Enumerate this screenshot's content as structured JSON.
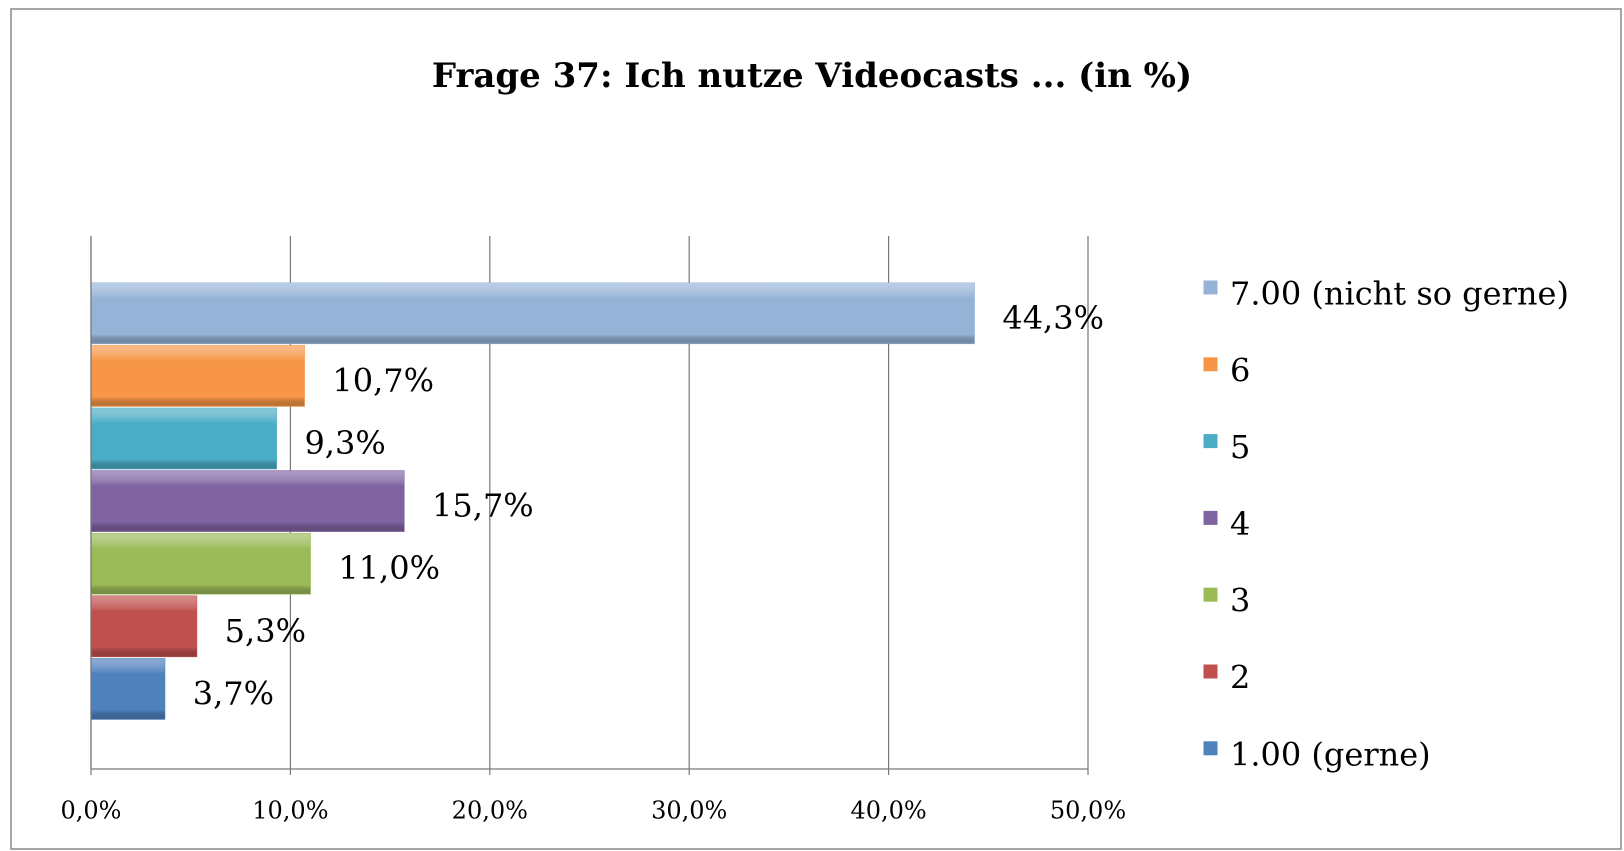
{
  "chart_data": {
    "type": "bar",
    "orientation": "horizontal",
    "title": "Frage 37: Ich nutze Videocasts ... (in %)",
    "series": [
      {
        "name": "1.00 (gerne)",
        "color": "#4f81bd",
        "values": [
          3.7
        ],
        "value_labels": [
          "3,7%"
        ]
      },
      {
        "name": "2",
        "color": "#c0504d",
        "values": [
          5.3
        ],
        "value_labels": [
          "5,3%"
        ]
      },
      {
        "name": "3",
        "color": "#9bbb59",
        "values": [
          11.0
        ],
        "value_labels": [
          "11,0%"
        ]
      },
      {
        "name": "4",
        "color": "#8064a2",
        "values": [
          15.7
        ],
        "value_labels": [
          "15,7%"
        ]
      },
      {
        "name": "5",
        "color": "#4bacc6",
        "values": [
          9.3
        ],
        "value_labels": [
          "9,3%"
        ]
      },
      {
        "name": "6",
        "color": "#f79646",
        "values": [
          10.7
        ],
        "value_labels": [
          "10,7%"
        ]
      },
      {
        "name": "7.00 (nicht so gerne)",
        "color": "#95b3d7",
        "values": [
          44.3
        ],
        "value_labels": [
          "44,3%"
        ]
      }
    ],
    "xlim": [
      0,
      50
    ],
    "xticks": [
      {
        "value": 0,
        "label": "0,0%"
      },
      {
        "value": 10,
        "label": "10,0%"
      },
      {
        "value": 20,
        "label": "20,0%"
      },
      {
        "value": 30,
        "label": "30,0%"
      },
      {
        "value": 40,
        "label": "40,0%"
      },
      {
        "value": 50,
        "label": "50,0%"
      }
    ],
    "grid": true,
    "legend": "right"
  }
}
